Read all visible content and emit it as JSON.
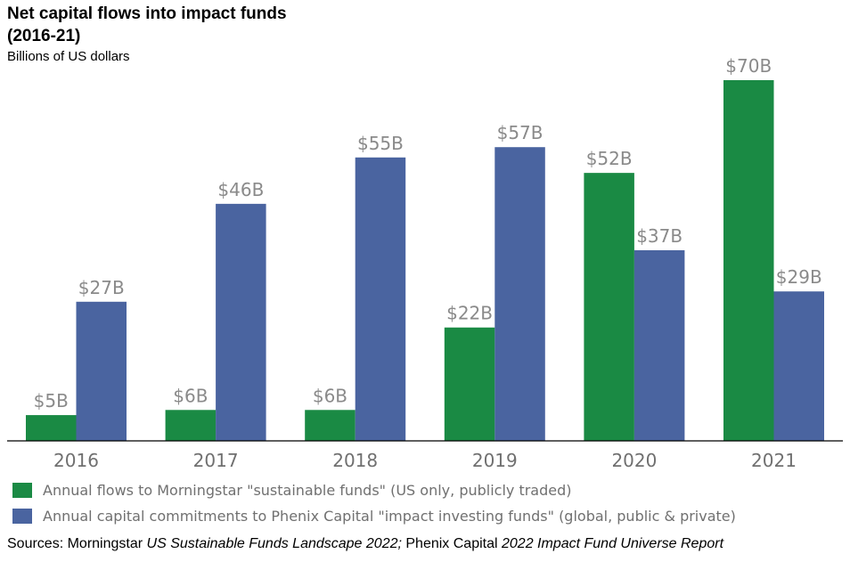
{
  "chart_data": {
    "type": "bar",
    "title_line1": "Net capital flows into impact funds",
    "title_line2": "(2016-21)",
    "subtitle": "Billions of US dollars",
    "categories": [
      "2016",
      "2017",
      "2018",
      "2019",
      "2020",
      "2021"
    ],
    "series": [
      {
        "name": "Annual flows to Morningstar \"sustainable funds\" (US only, publicly traded)",
        "color": "#1a8a44",
        "values": [
          5,
          6,
          6,
          22,
          52,
          70
        ],
        "labels": [
          "$5B",
          "$6B",
          "$6B",
          "$22B",
          "$52B",
          "$70B"
        ]
      },
      {
        "name": "Annual capital commitments to Phenix Capital \"impact investing funds\" (global, public & private)",
        "color": "#4a64a0",
        "values": [
          27,
          46,
          55,
          57,
          37,
          29
        ],
        "labels": [
          "$27B",
          "$46B",
          "$55B",
          "$57B",
          "$37B",
          "$29B"
        ]
      }
    ],
    "ylim": [
      0,
      70
    ],
    "grid": false,
    "legend_position": "bottom"
  },
  "source": {
    "prefix": "Sources: Morningstar ",
    "title1": "US Sustainable Funds Landscape 2022;",
    "middle": " Phenix Capital ",
    "title2": "2022 Impact Fund Universe Report"
  }
}
